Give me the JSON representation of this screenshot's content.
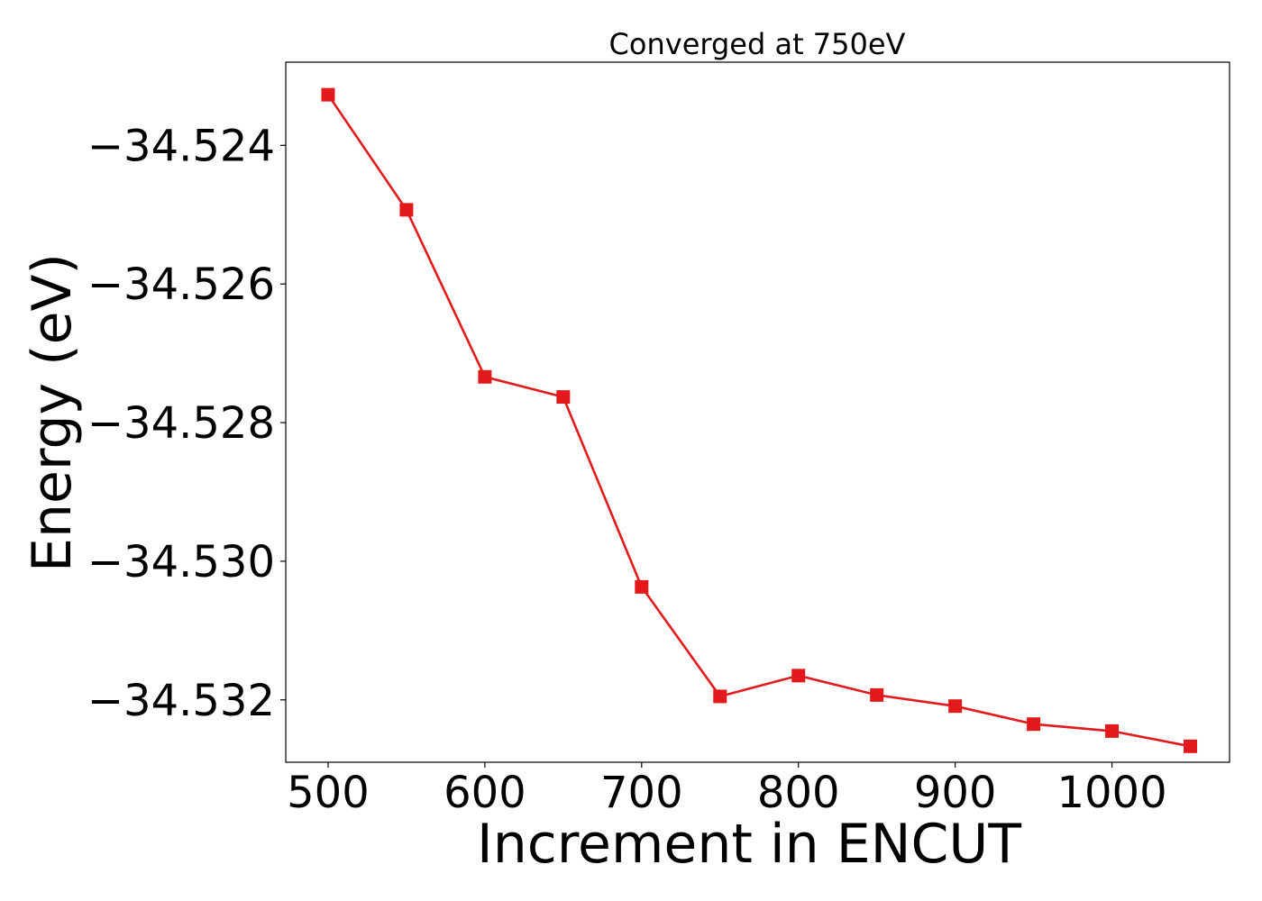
{
  "chart_data": {
    "type": "line",
    "title": "Converged at 750eV",
    "xlabel": "Increment in ENCUT",
    "ylabel": "Energy (eV)",
    "x": [
      500,
      550,
      600,
      650,
      700,
      750,
      800,
      850,
      900,
      950,
      1000,
      1050
    ],
    "series": [
      {
        "values": [
          -34.52327,
          -34.52493,
          -34.52734,
          -34.52763,
          -34.53037,
          -34.53195,
          -34.53165,
          -34.53193,
          -34.53209,
          -34.53235,
          -34.53245,
          -34.53267
        ],
        "color": "#e31a1c",
        "marker": "square"
      }
    ],
    "xlim": [
      473,
      1075
    ],
    "ylim": [
      -34.5329,
      -34.5228
    ],
    "xticks": [
      500,
      600,
      700,
      800,
      900,
      1000
    ],
    "xtick_labels": [
      "500",
      "600",
      "700",
      "800",
      "900",
      "1000"
    ],
    "yticks": [
      -34.524,
      -34.526,
      -34.528,
      -34.53,
      -34.532
    ],
    "ytick_labels": [
      "−34.524",
      "−34.526",
      "−34.528",
      "−34.530",
      "−34.532"
    ],
    "grid": false,
    "legend": "none"
  }
}
